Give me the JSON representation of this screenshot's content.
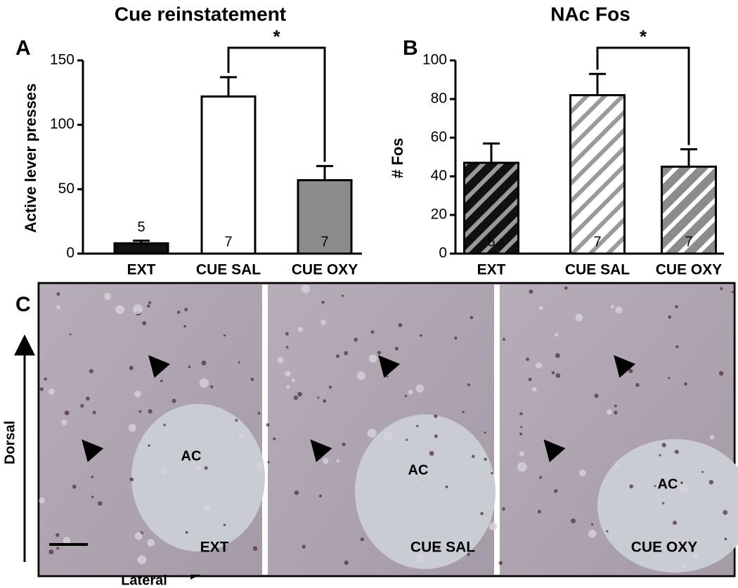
{
  "chart_data": [
    {
      "type": "bar",
      "panel_label": "A",
      "title": "Cue reinstatement",
      "y_label": "Active lever presses",
      "categories": [
        "EXT",
        "CUE SAL",
        "CUE OXY"
      ],
      "values": [
        8,
        122,
        57
      ],
      "errors": [
        2,
        15,
        11
      ],
      "n": [
        5,
        7,
        7
      ],
      "colors": [
        "#111111",
        "#ffffff",
        "#8c8c8c"
      ],
      "hatch": false,
      "annotation": "*",
      "ylim": [
        0,
        150
      ],
      "yticks": [
        0,
        50,
        100,
        150
      ]
    },
    {
      "type": "bar",
      "panel_label": "B",
      "title": "NAc Fos",
      "y_label": "# Fos",
      "categories": [
        "EXT",
        "CUE SAL",
        "CUE OXY"
      ],
      "values": [
        47,
        82,
        45
      ],
      "errors": [
        10,
        11,
        9
      ],
      "n": [
        5,
        7,
        7
      ],
      "colors": [
        "#111111",
        "#ffffff",
        "#8c8c8c"
      ],
      "hatch": true,
      "annotation": "*",
      "ylim": [
        0,
        100
      ],
      "yticks": [
        0,
        20,
        40,
        60,
        80,
        100
      ]
    }
  ],
  "panel_c": {
    "panel_label": "C",
    "region_label": "AC",
    "images": [
      "EXT",
      "CUE SAL",
      "CUE OXY"
    ],
    "y_axis_label": "Dorsal",
    "x_axis_label": "Lateral"
  }
}
